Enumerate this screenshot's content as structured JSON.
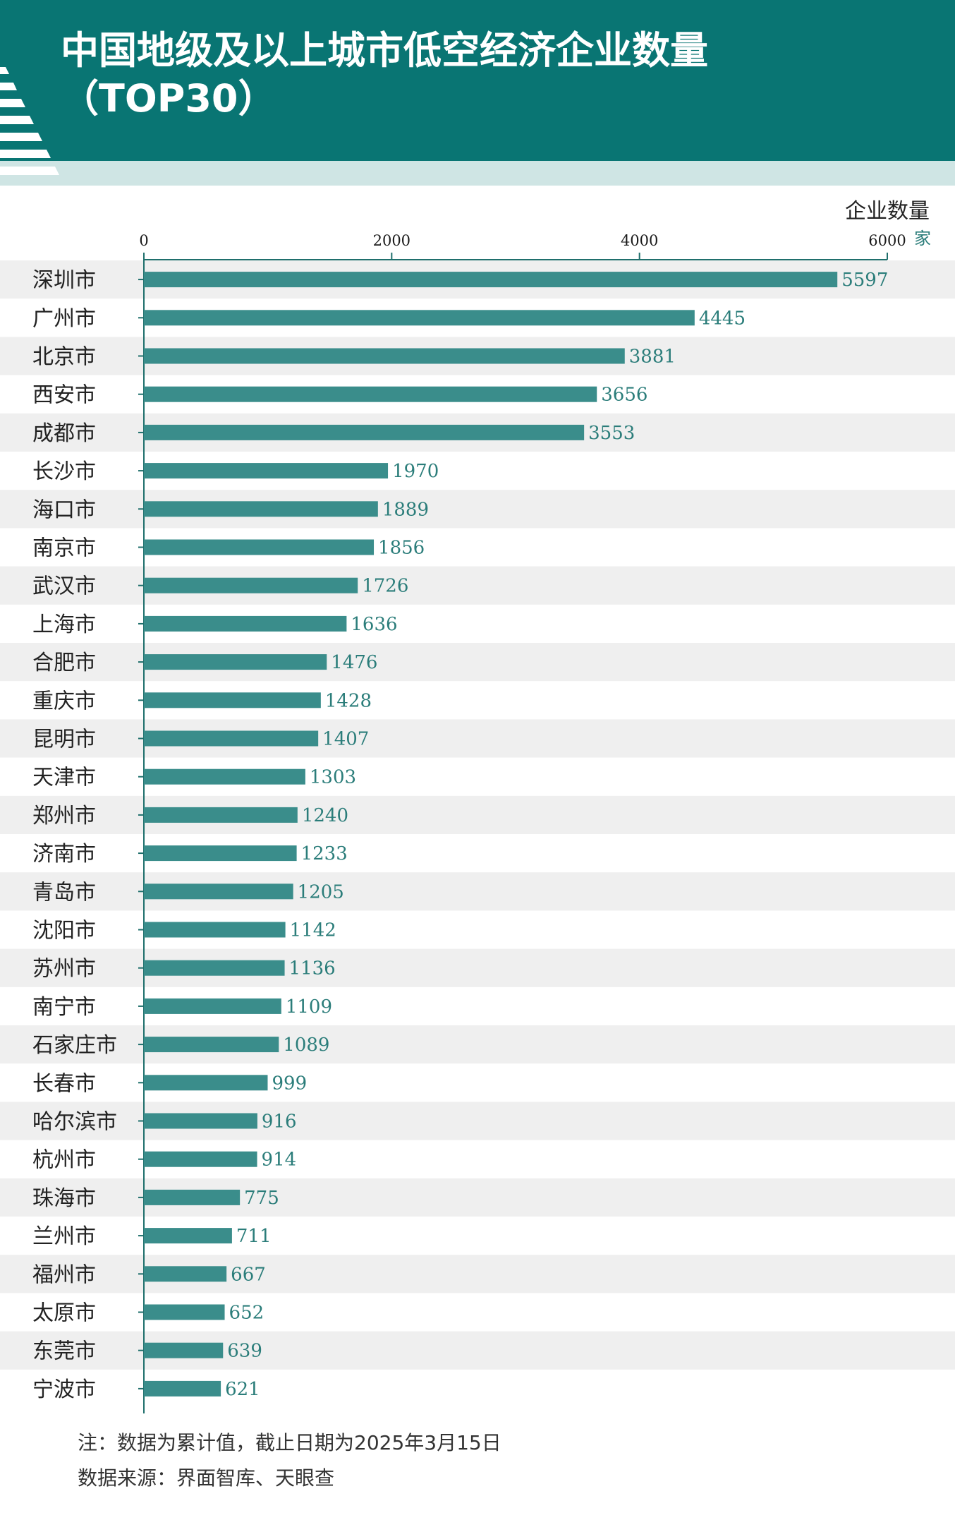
{
  "title": {
    "line1": "中国地级及以上城市低空经济企业数量",
    "line2": "（TOP30）"
  },
  "colors": {
    "header": "#097573",
    "band": "#cfe5e4",
    "bar": "#3a8d8b",
    "axis": "#1f6f6c",
    "value_text": "#2b7d7a",
    "row_alt": "#efefef"
  },
  "chart_data": {
    "type": "bar",
    "orientation": "horizontal",
    "xlabel": "企业数量",
    "unit": "家",
    "xlim": [
      0,
      6000
    ],
    "ticks": [
      0,
      2000,
      4000,
      6000
    ],
    "categories": [
      "深圳市",
      "广州市",
      "北京市",
      "西安市",
      "成都市",
      "长沙市",
      "海口市",
      "南京市",
      "武汉市",
      "上海市",
      "合肥市",
      "重庆市",
      "昆明市",
      "天津市",
      "郑州市",
      "济南市",
      "青岛市",
      "沈阳市",
      "苏州市",
      "南宁市",
      "石家庄市",
      "长春市",
      "哈尔滨市",
      "杭州市",
      "珠海市",
      "兰州市",
      "福州市",
      "太原市",
      "东莞市",
      "宁波市"
    ],
    "values": [
      5597,
      4445,
      3881,
      3656,
      3553,
      1970,
      1889,
      1856,
      1726,
      1636,
      1476,
      1428,
      1407,
      1303,
      1240,
      1233,
      1205,
      1142,
      1136,
      1109,
      1089,
      999,
      916,
      914,
      775,
      711,
      667,
      652,
      639,
      621
    ]
  },
  "footer": {
    "note": "注：数据为累计值，截止日期为2025年3月15日",
    "source": "数据来源：界面智库、天眼查"
  }
}
